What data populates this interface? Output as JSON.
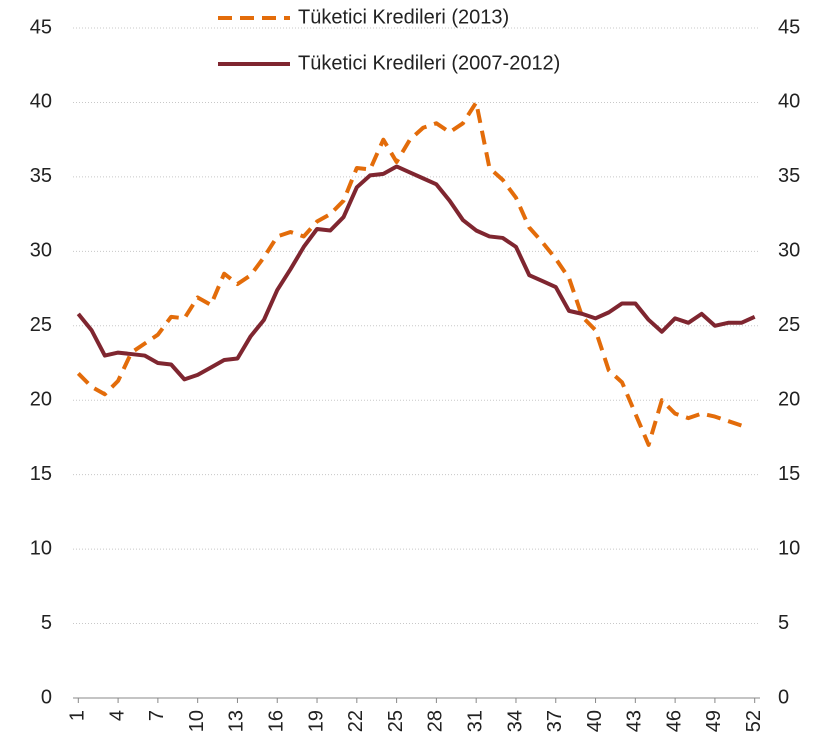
{
  "chart_data": {
    "type": "line",
    "x": [
      1,
      2,
      3,
      4,
      5,
      6,
      7,
      8,
      9,
      10,
      11,
      12,
      13,
      14,
      15,
      16,
      17,
      18,
      19,
      20,
      21,
      22,
      23,
      24,
      25,
      26,
      27,
      28,
      29,
      30,
      31,
      32,
      33,
      34,
      35,
      36,
      37,
      38,
      39,
      40,
      41,
      42,
      43,
      44,
      45,
      46,
      47,
      48,
      49,
      50,
      51,
      52
    ],
    "series": [
      {
        "name": "Tüketici Kredileri (2013)",
        "color": "#e36c0a",
        "style": "dashed",
        "values": [
          21.8,
          20.9,
          20.4,
          21.3,
          23.2,
          23.8,
          24.4,
          25.6,
          25.5,
          26.9,
          26.4,
          28.5,
          27.8,
          28.4,
          29.6,
          31.0,
          31.3,
          31.0,
          32.0,
          32.5,
          33.4,
          35.6,
          35.5,
          37.5,
          36.0,
          37.5,
          38.3,
          38.6,
          38.0,
          38.6,
          40.0,
          35.6,
          34.8,
          33.6,
          31.6,
          30.6,
          29.5,
          28.2,
          25.6,
          24.7,
          22.0,
          21.2,
          19.1,
          17.0,
          20.0,
          19.1,
          18.8,
          19.1,
          18.9,
          18.6,
          18.3,
          null
        ]
      },
      {
        "name": "Tüketici Kredileri (2007-2012)",
        "color": "#7f2630",
        "style": "solid",
        "values": [
          25.8,
          24.7,
          23.0,
          23.2,
          23.1,
          23.0,
          22.5,
          22.4,
          21.4,
          21.7,
          22.2,
          22.7,
          22.8,
          24.3,
          25.4,
          27.4,
          28.8,
          30.3,
          31.5,
          31.4,
          32.3,
          34.3,
          35.1,
          35.2,
          35.7,
          35.3,
          34.9,
          34.5,
          33.4,
          32.1,
          31.4,
          31.0,
          30.9,
          30.3,
          28.4,
          28.0,
          27.6,
          26.0,
          25.8,
          25.5,
          25.9,
          26.5,
          26.5,
          25.4,
          24.6,
          25.5,
          25.2,
          25.8,
          25.0,
          25.2,
          25.2,
          25.6
        ]
      }
    ],
    "xlim": [
      0.6,
      52.4
    ],
    "xticks": [
      1,
      4,
      7,
      10,
      13,
      16,
      19,
      22,
      25,
      28,
      31,
      34,
      37,
      40,
      43,
      46,
      49,
      52
    ],
    "ylim": [
      0,
      45
    ],
    "yticks": [
      0,
      5,
      10,
      15,
      20,
      25,
      30,
      35,
      40,
      45
    ],
    "y2lim": [
      0,
      45
    ],
    "y2ticks": [
      0,
      5,
      10,
      15,
      20,
      25,
      30,
      35,
      40,
      45
    ],
    "grid": true,
    "legend": "top"
  }
}
